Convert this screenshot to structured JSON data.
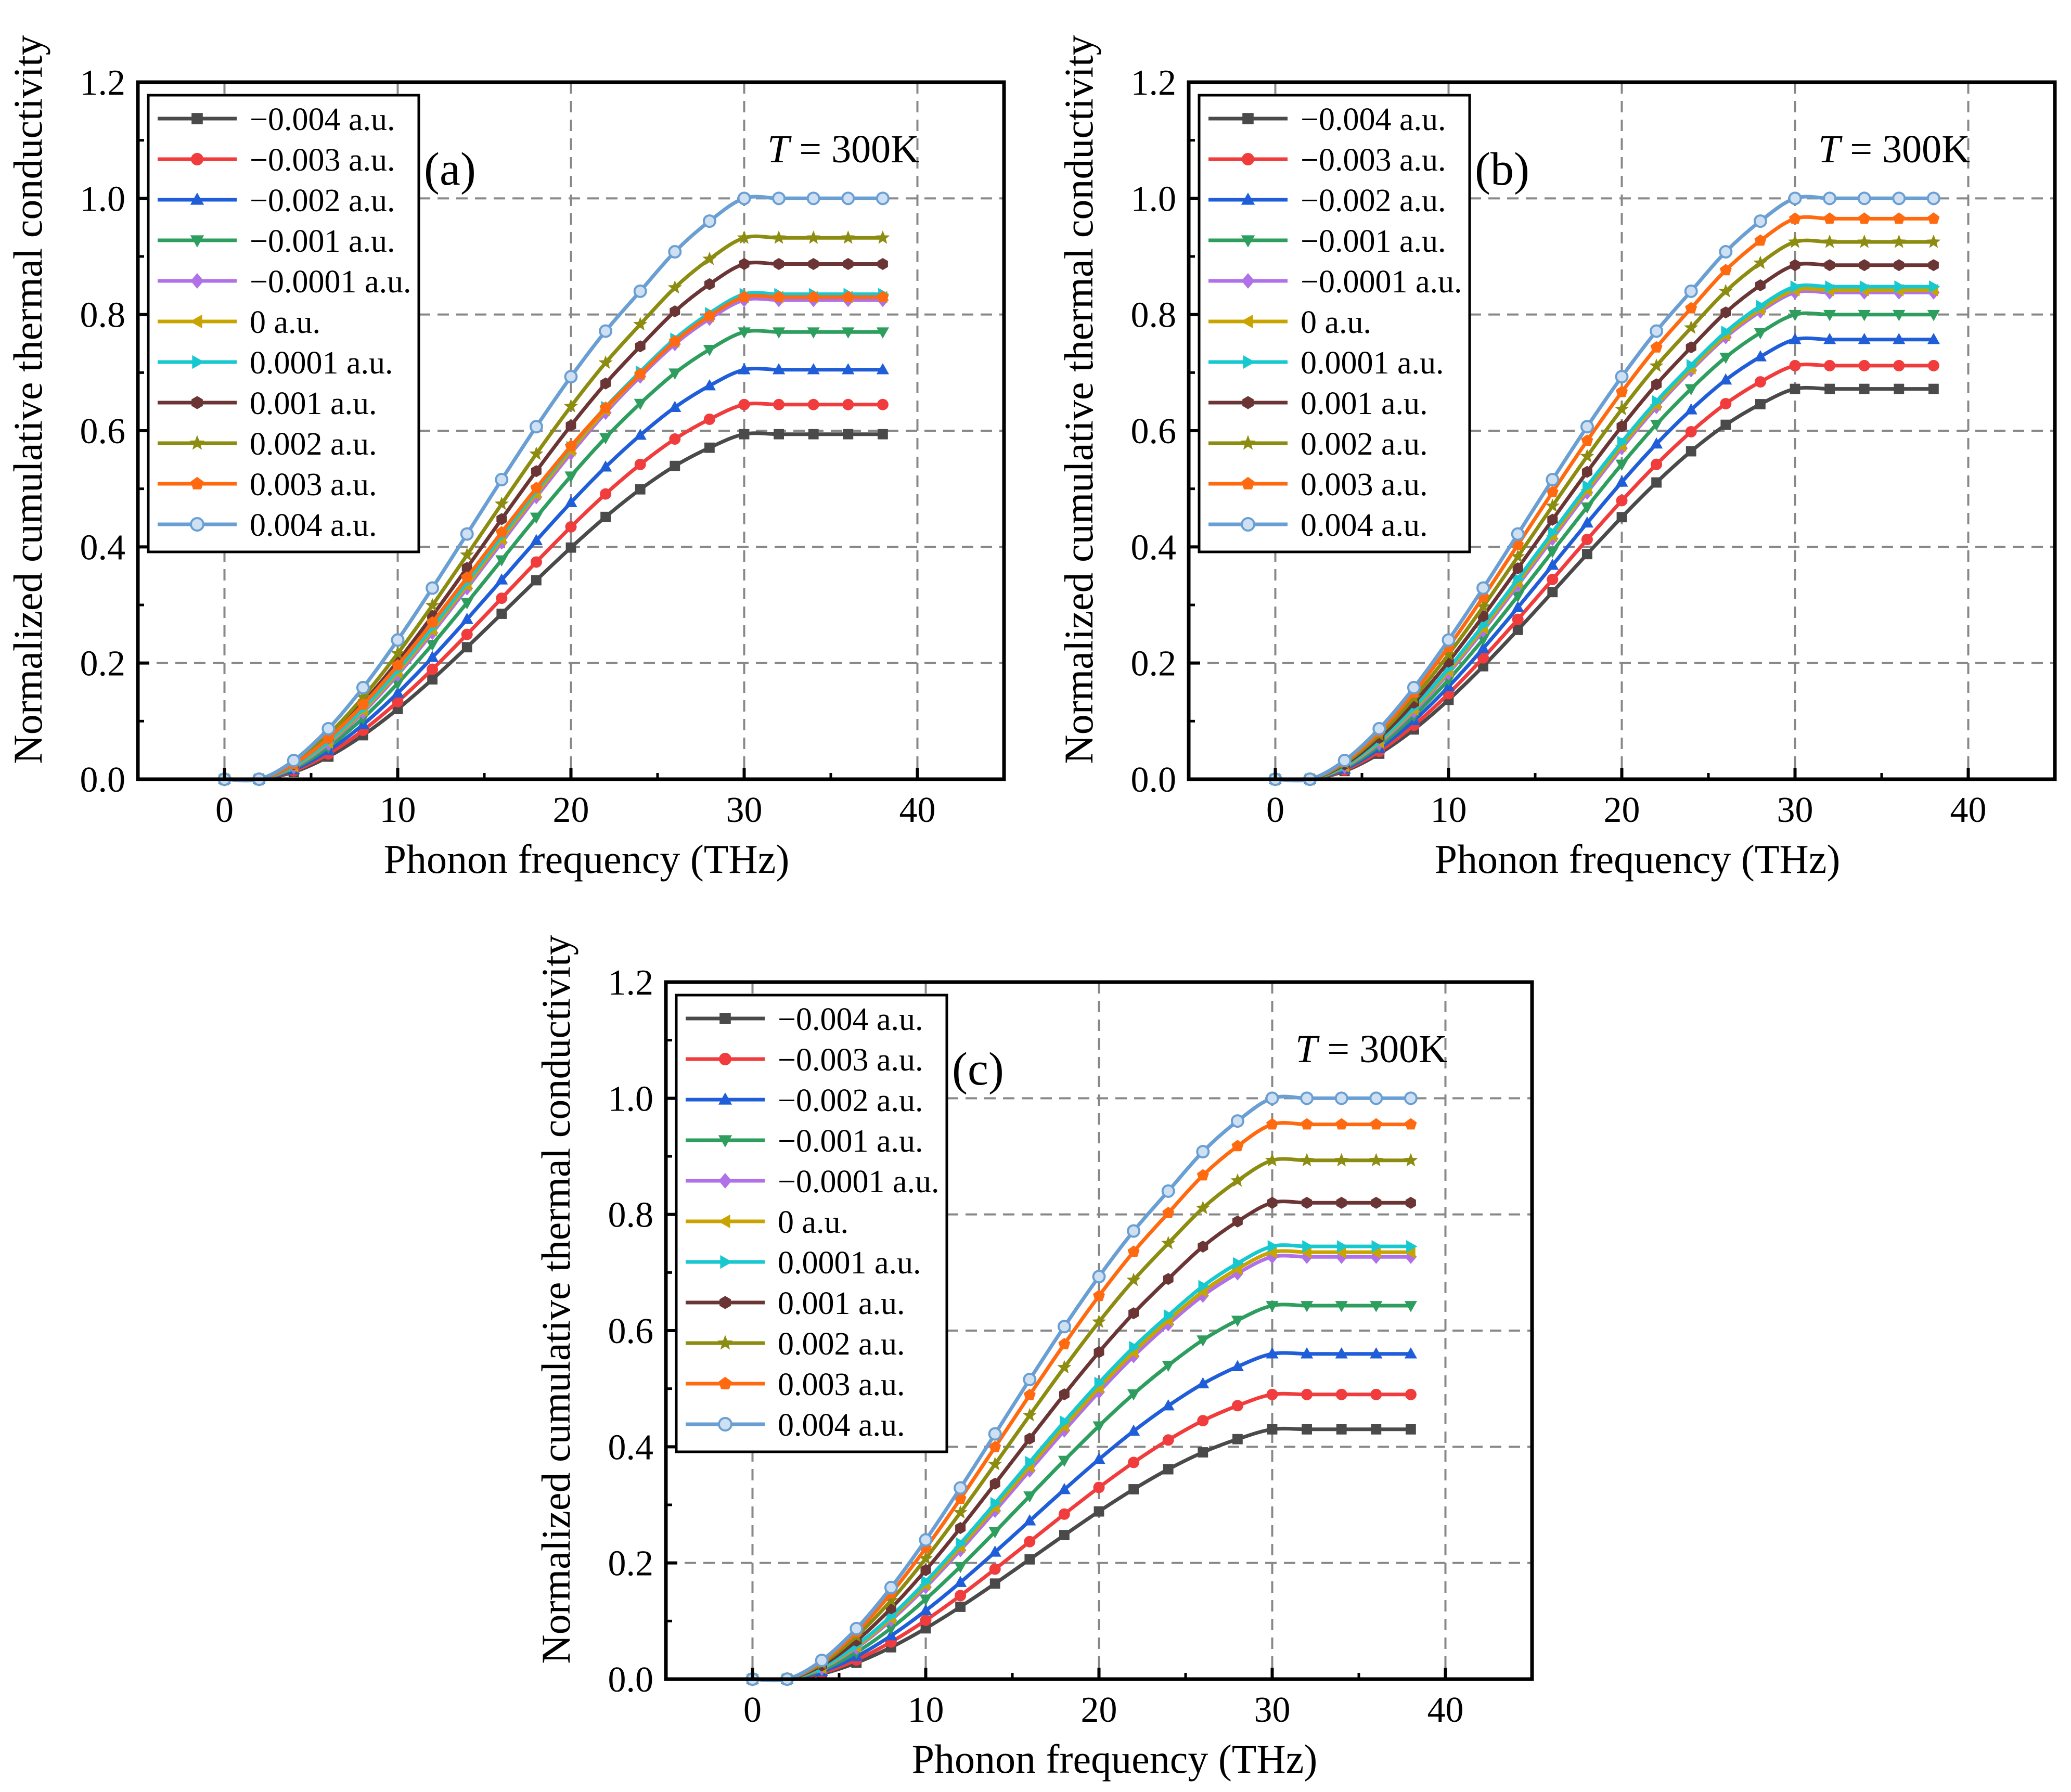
{
  "figure": {
    "panels": [
      "a",
      "b",
      "c"
    ]
  },
  "chart_data": [
    {
      "panel": "a",
      "type": "line",
      "panel_label": "(a)",
      "annotation": {
        "italic": "T",
        "rest": " = 300K"
      },
      "xlabel": "Phonon frequency (THz)",
      "ylabel": "Normalized cumulative thermal conductivity",
      "xlim": [
        -5,
        45
      ],
      "ylim": [
        0,
        1.2
      ],
      "xticks": [
        "0",
        "10",
        "20",
        "30",
        "40"
      ],
      "yticks": [
        "0.0",
        "0.2",
        "0.4",
        "0.6",
        "0.8",
        "1.0",
        "1.2"
      ],
      "grid": true,
      "legend_position": "top-left",
      "x": [
        0,
        2,
        4,
        6,
        8,
        10,
        12,
        14,
        16,
        18,
        20,
        22,
        24,
        26,
        28,
        30,
        32,
        34,
        36,
        38
      ],
      "series": [
        {
          "name": "−0.004 a.u.",
          "color": "#4a4a4a",
          "marker": "square",
          "final": 0.594
        },
        {
          "name": "−0.003 a.u.",
          "color": "#f03c3c",
          "marker": "circle",
          "final": 0.645
        },
        {
          "name": "−0.002 a.u.",
          "color": "#1f5ed8",
          "marker": "triangle-up",
          "final": 0.705
        },
        {
          "name": "−0.001 a.u.",
          "color": "#2e9e5e",
          "marker": "triangle-down",
          "final": 0.77
        },
        {
          "name": "−0.0001 a.u.",
          "color": "#b070e8",
          "marker": "diamond",
          "final": 0.825
        },
        {
          "name": "0 a.u.",
          "color": "#c9a400",
          "marker": "triangle-left",
          "final": 0.83
        },
        {
          "name": "0.0001 a.u.",
          "color": "#18c8d0",
          "marker": "triangle-right",
          "final": 0.835
        },
        {
          "name": "0.001 a.u.",
          "color": "#6b3535",
          "marker": "hexagon",
          "final": 0.887
        },
        {
          "name": "0.002 a.u.",
          "color": "#8c8c10",
          "marker": "star",
          "final": 0.932
        },
        {
          "name": "0.003 a.u.",
          "color": "#ff6a10",
          "marker": "pentagon",
          "final": 0.83
        },
        {
          "name": "0.004 a.u.",
          "color": "#6a9fd4",
          "marker": "circle-open",
          "final": 1.0
        }
      ]
    },
    {
      "panel": "b",
      "type": "line",
      "panel_label": "(b)",
      "annotation": {
        "italic": "T",
        "rest": " = 300K"
      },
      "xlabel": "Phonon frequency (THz)",
      "ylabel": "Normalized cumulative thermal conductivity",
      "xlim": [
        -5,
        45
      ],
      "ylim": [
        0,
        1.2
      ],
      "xticks": [
        "0",
        "10",
        "20",
        "30",
        "40"
      ],
      "yticks": [
        "0.0",
        "0.2",
        "0.4",
        "0.6",
        "0.8",
        "1.0",
        "1.2"
      ],
      "grid": true,
      "legend_position": "top-left",
      "x": [
        0,
        2,
        4,
        6,
        8,
        10,
        12,
        14,
        16,
        18,
        20,
        22,
        24,
        26,
        28,
        30,
        32,
        34,
        36,
        38
      ],
      "series": [
        {
          "name": "−0.004 a.u.",
          "color": "#4a4a4a",
          "marker": "square",
          "final": 0.672
        },
        {
          "name": "−0.003 a.u.",
          "color": "#f03c3c",
          "marker": "circle",
          "final": 0.712
        },
        {
          "name": "−0.002 a.u.",
          "color": "#1f5ed8",
          "marker": "triangle-up",
          "final": 0.757
        },
        {
          "name": "−0.001 a.u.",
          "color": "#2e9e5e",
          "marker": "triangle-down",
          "final": 0.8
        },
        {
          "name": "−0.0001 a.u.",
          "color": "#b070e8",
          "marker": "diamond",
          "final": 0.838
        },
        {
          "name": "0 a.u.",
          "color": "#c9a400",
          "marker": "triangle-left",
          "final": 0.842
        },
        {
          "name": "0.0001 a.u.",
          "color": "#18c8d0",
          "marker": "triangle-right",
          "final": 0.848
        },
        {
          "name": "0.001 a.u.",
          "color": "#6b3535",
          "marker": "hexagon",
          "final": 0.885
        },
        {
          "name": "0.002 a.u.",
          "color": "#8c8c10",
          "marker": "star",
          "final": 0.925
        },
        {
          "name": "0.003 a.u.",
          "color": "#ff6a10",
          "marker": "pentagon",
          "final": 0.965
        },
        {
          "name": "0.004 a.u.",
          "color": "#6a9fd4",
          "marker": "circle-open",
          "final": 1.0
        }
      ]
    },
    {
      "panel": "c",
      "type": "line",
      "panel_label": "(c)",
      "annotation": {
        "italic": "T",
        "rest": " = 300K"
      },
      "xlabel": "Phonon frequency (THz)",
      "ylabel": "Normalized cumulative thermal conductivity",
      "xlim": [
        -5,
        45
      ],
      "ylim": [
        0,
        1.2
      ],
      "xticks": [
        "0",
        "10",
        "20",
        "30",
        "40"
      ],
      "yticks": [
        "0.0",
        "0.2",
        "0.4",
        "0.6",
        "0.8",
        "1.0",
        "1.2"
      ],
      "grid": true,
      "legend_position": "top-left",
      "x": [
        0,
        2,
        4,
        6,
        8,
        10,
        12,
        14,
        16,
        18,
        20,
        22,
        24,
        26,
        28,
        30,
        32,
        34,
        36,
        38
      ],
      "series": [
        {
          "name": "−0.004 a.u.",
          "color": "#4a4a4a",
          "marker": "square",
          "final": 0.43
        },
        {
          "name": "−0.003 a.u.",
          "color": "#f03c3c",
          "marker": "circle",
          "final": 0.49
        },
        {
          "name": "−0.002 a.u.",
          "color": "#1f5ed8",
          "marker": "triangle-up",
          "final": 0.56
        },
        {
          "name": "−0.001 a.u.",
          "color": "#2e9e5e",
          "marker": "triangle-down",
          "final": 0.643
        },
        {
          "name": "−0.0001 a.u.",
          "color": "#b070e8",
          "marker": "diamond",
          "final": 0.727
        },
        {
          "name": "0 a.u.",
          "color": "#c9a400",
          "marker": "triangle-left",
          "final": 0.735
        },
        {
          "name": "0.0001 a.u.",
          "color": "#18c8d0",
          "marker": "triangle-right",
          "final": 0.745
        },
        {
          "name": "0.001 a.u.",
          "color": "#6b3535",
          "marker": "hexagon",
          "final": 0.82
        },
        {
          "name": "0.002 a.u.",
          "color": "#8c8c10",
          "marker": "star",
          "final": 0.893
        },
        {
          "name": "0.003 a.u.",
          "color": "#ff6a10",
          "marker": "pentagon",
          "final": 0.955
        },
        {
          "name": "0.004 a.u.",
          "color": "#6a9fd4",
          "marker": "circle-open",
          "final": 1.0
        }
      ]
    }
  ]
}
